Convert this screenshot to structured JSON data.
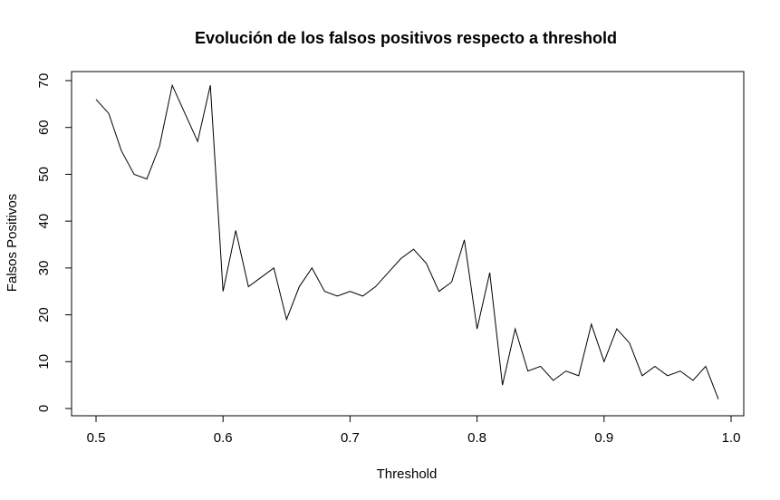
{
  "chart_data": {
    "type": "line",
    "title": "Evolución de los falsos positivos respecto a threshold",
    "xlabel": "Threshold",
    "ylabel": "Falsos Positivos",
    "xlim": [
      0.5,
      1.0
    ],
    "ylim": [
      0,
      70
    ],
    "xticks": [
      "0.5",
      "0.6",
      "0.7",
      "0.8",
      "0.9",
      "1.0"
    ],
    "yticks": [
      "0",
      "10",
      "20",
      "30",
      "40",
      "50",
      "60",
      "70"
    ],
    "grid": false,
    "line_color": "#000000",
    "x": [
      0.5,
      0.51,
      0.52,
      0.53,
      0.54,
      0.55,
      0.56,
      0.57,
      0.58,
      0.59,
      0.6,
      0.61,
      0.62,
      0.63,
      0.64,
      0.65,
      0.66,
      0.67,
      0.68,
      0.69,
      0.7,
      0.71,
      0.72,
      0.73,
      0.74,
      0.75,
      0.76,
      0.77,
      0.78,
      0.79,
      0.8,
      0.81,
      0.82,
      0.83,
      0.84,
      0.85,
      0.86,
      0.87,
      0.88,
      0.89,
      0.9,
      0.91,
      0.92,
      0.93,
      0.94,
      0.95,
      0.96,
      0.97,
      0.98,
      0.99
    ],
    "y": [
      66,
      63,
      55,
      50,
      49,
      56,
      69,
      63,
      57,
      69,
      25,
      38,
      26,
      28,
      30,
      19,
      26,
      30,
      25,
      24,
      25,
      24,
      26,
      29,
      32,
      34,
      31,
      25,
      27,
      36,
      17,
      29,
      5,
      17,
      8,
      9,
      6,
      8,
      7,
      18,
      10,
      17,
      14,
      7,
      9,
      7,
      8,
      6,
      9,
      2
    ]
  }
}
